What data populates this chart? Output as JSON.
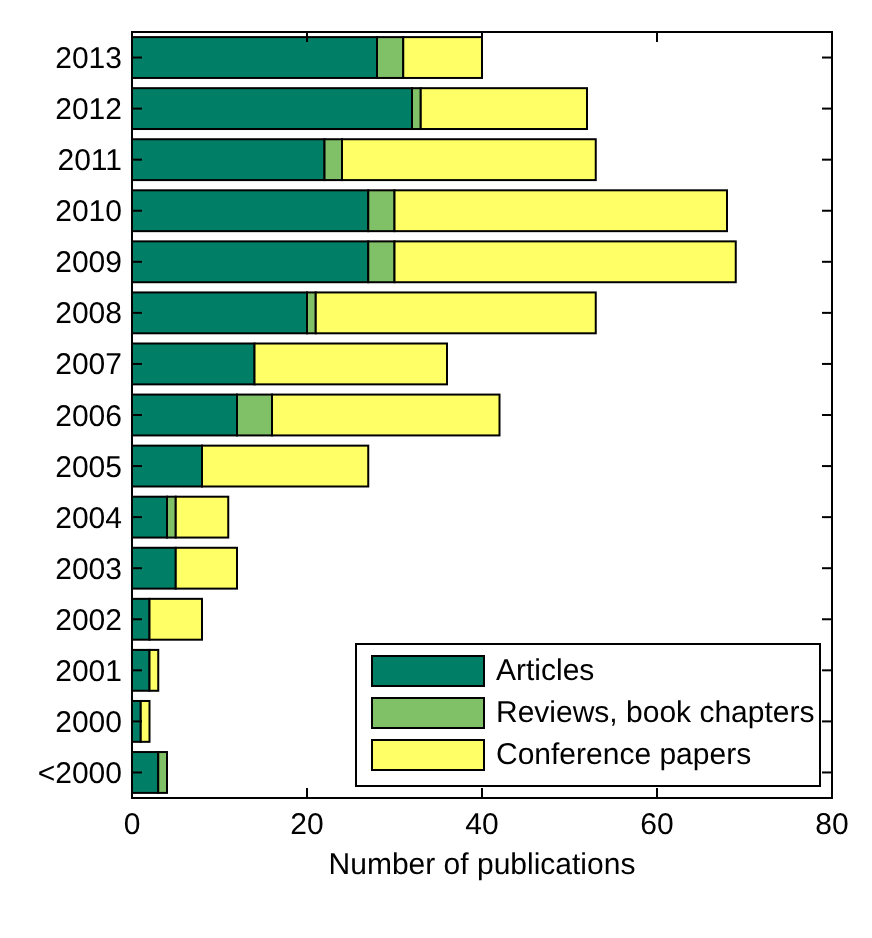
{
  "chart_data": {
    "type": "bar",
    "orientation": "horizontal",
    "stacked": true,
    "xlabel": "Number of publications",
    "categories": [
      "2013",
      "2012",
      "2011",
      "2010",
      "2009",
      "2008",
      "2007",
      "2006",
      "2005",
      "2004",
      "2003",
      "2002",
      "2001",
      "2000",
      "<2000"
    ],
    "series": [
      {
        "name": "Articles",
        "color": "#007f66",
        "values": [
          28,
          32,
          22,
          27,
          27,
          20,
          14,
          12,
          8,
          4,
          5,
          2,
          2,
          1,
          3
        ]
      },
      {
        "name": "Reviews, book chapters",
        "color": "#80c066",
        "values": [
          3,
          1,
          2,
          3,
          3,
          1,
          0,
          4,
          0,
          1,
          0,
          0,
          0,
          0,
          1
        ]
      },
      {
        "name": "Conference papers",
        "color": "#ffff66",
        "values": [
          9,
          19,
          29,
          38,
          39,
          32,
          22,
          26,
          19,
          6,
          7,
          6,
          1,
          1,
          0
        ]
      }
    ],
    "xlim": [
      0,
      80
    ],
    "xticks": [
      0,
      20,
      40,
      60,
      80
    ],
    "legend": "bottom right",
    "grid": false
  }
}
